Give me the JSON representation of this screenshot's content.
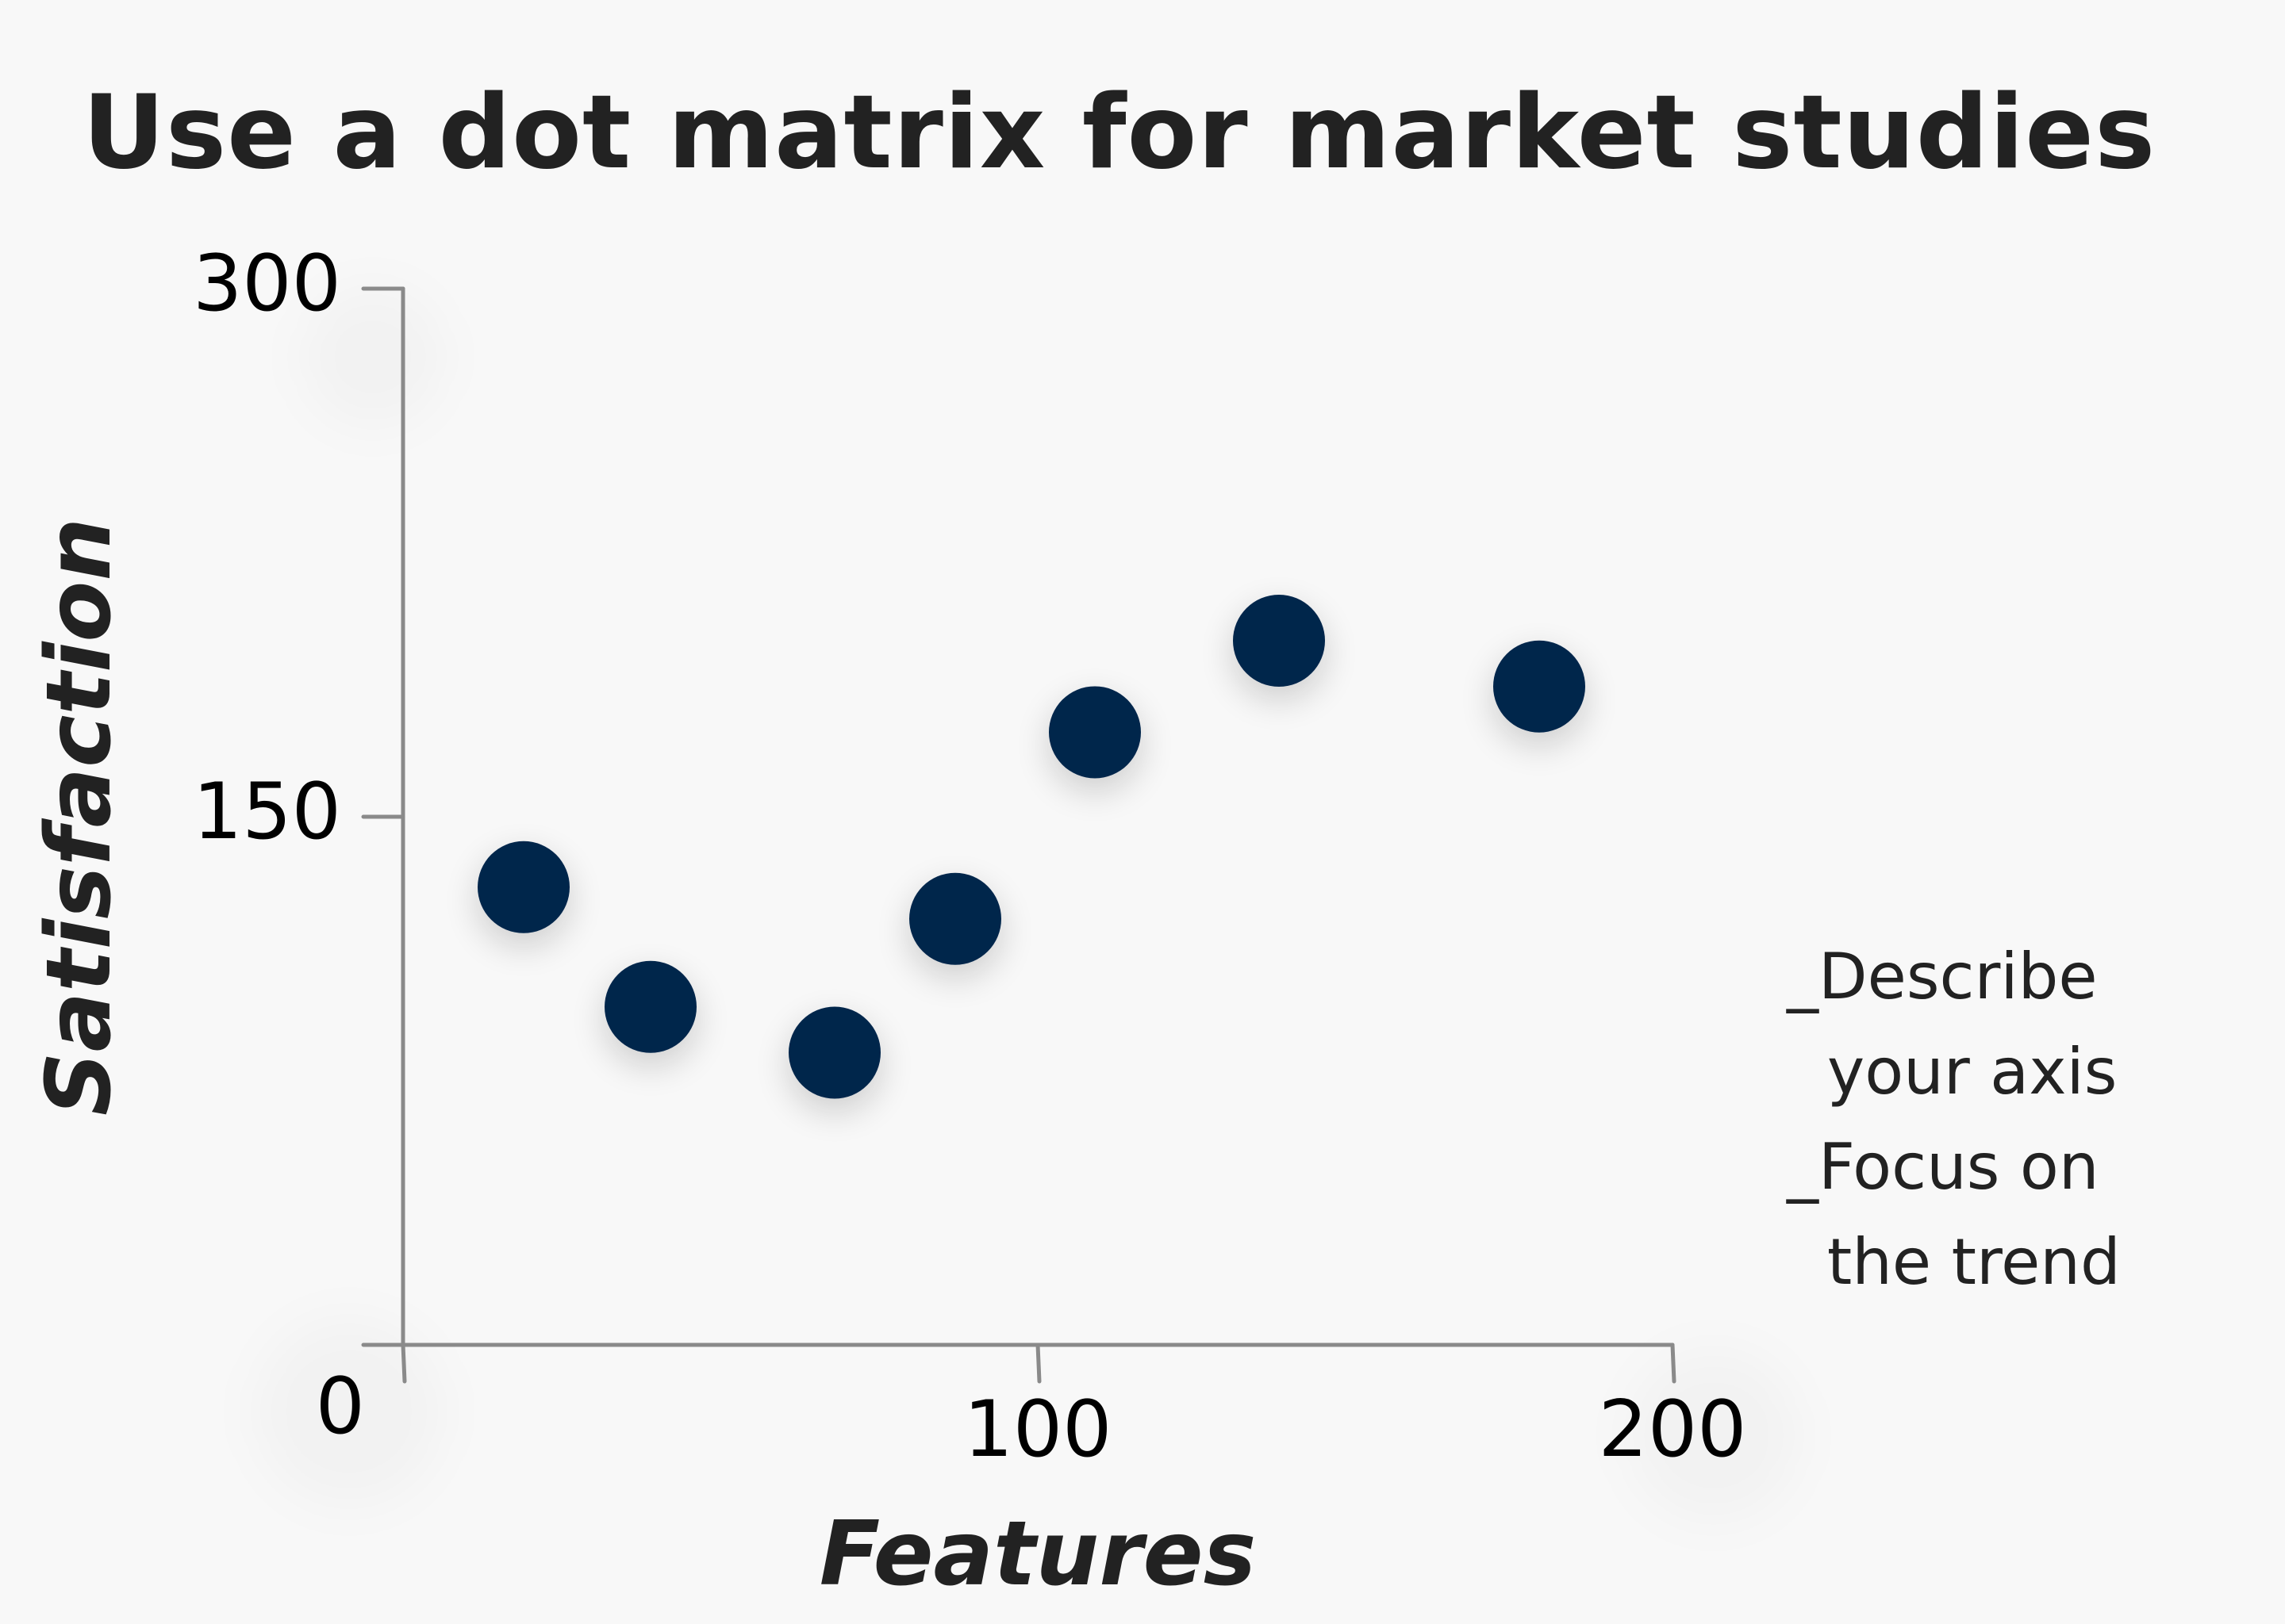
{
  "title": "Use a dot matrix for market studies",
  "annotation": {
    "lines": [
      "_Describe",
      "  your axis",
      "_Focus on",
      "  the trend"
    ]
  },
  "colors": {
    "background": "#f8f8f8",
    "marker": "#02254b",
    "axis": "#8a8a8a",
    "text": "#222222"
  },
  "chart_data": {
    "type": "scatter",
    "title": "Use a dot matrix for market studies",
    "xlabel": "Features",
    "ylabel": "Satisfaction",
    "xlim": [
      0,
      200
    ],
    "ylim": [
      0,
      300
    ],
    "xticks": [
      0,
      100,
      200
    ],
    "yticks": [
      0,
      150,
      300
    ],
    "xtick_labels": [
      "0",
      "100",
      "200"
    ],
    "ytick_labels": [
      "0",
      "150",
      "300"
    ],
    "grid": false,
    "legend": "none",
    "points": [
      {
        "x": 19,
        "y": 130
      },
      {
        "x": 39,
        "y": 96
      },
      {
        "x": 68,
        "y": 83
      },
      {
        "x": 87,
        "y": 121
      },
      {
        "x": 109,
        "y": 174
      },
      {
        "x": 138,
        "y": 200
      },
      {
        "x": 179,
        "y": 187
      }
    ]
  }
}
